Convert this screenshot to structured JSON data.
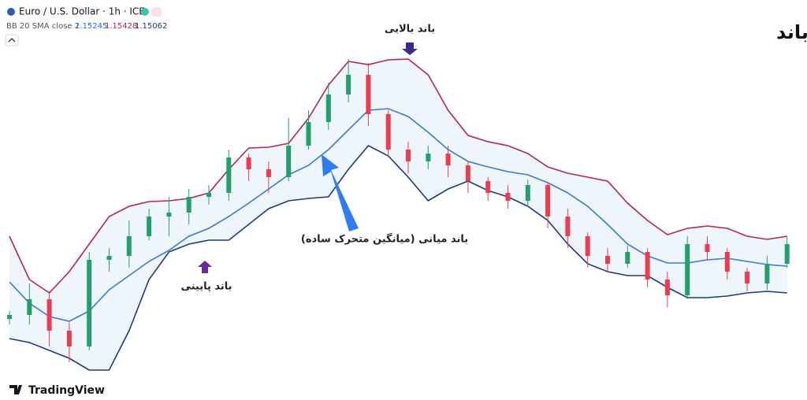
{
  "chart_data": {
    "type": "candlestick",
    "symbol": "Euro / U.S. Dollar · 1h · ICE",
    "indicator": {
      "label": "BB 20 SMA close 2",
      "basis": 1.15245,
      "upper": 1.15428,
      "lower": 1.15062
    },
    "title": "اندیکاتور بولینگر باند",
    "annotations": {
      "upper": "باند بالایی",
      "middle": "باند میانی (میانگین متحرک ساده)",
      "lower": "باند پایینی"
    },
    "brand": "TradingView",
    "ylim": [
      1.1442,
      1.1696
    ],
    "up_color": "#22a06b",
    "down_color": "#ef3b50",
    "candles": {
      "open": [
        1.14935,
        1.1496,
        1.1506,
        1.1486,
        1.1476,
        1.1531,
        1.15335,
        1.1546,
        1.15585,
        1.1561,
        1.1571,
        1.15735,
        1.1596,
        1.15885,
        1.15835,
        1.16035,
        1.16185,
        1.1636,
        1.16485,
        1.16235,
        1.1601,
        1.15935,
        1.15985,
        1.1591,
        1.1581,
        1.15735,
        1.15685,
        1.15785,
        1.15585,
        1.1546,
        1.15335,
        1.15285,
        1.1536,
        1.15185,
        1.15085,
        1.1541,
        1.1536,
        1.15235,
        1.1516,
        1.15285
      ],
      "high": [
        1.14985,
        1.1516,
        1.1511,
        1.1491,
        1.1536,
        1.15385,
        1.1556,
        1.15635,
        1.1571,
        1.1576,
        1.15785,
        1.1601,
        1.15985,
        1.15935,
        1.1621,
        1.1626,
        1.16435,
        1.16585,
        1.1656,
        1.1626,
        1.1606,
        1.16035,
        1.16035,
        1.15935,
        1.15835,
        1.15785,
        1.1582,
        1.158,
        1.15635,
        1.15485,
        1.15385,
        1.154,
        1.15385,
        1.15235,
        1.1546,
        1.1546,
        1.15385,
        1.1526,
        1.15335,
        1.1546
      ],
      "low": [
        1.149,
        1.149,
        1.1476,
        1.1466,
        1.14735,
        1.15235,
        1.1526,
        1.15435,
        1.1546,
        1.15535,
        1.1566,
        1.15685,
        1.1581,
        1.15735,
        1.1581,
        1.1601,
        1.16135,
        1.1631,
        1.1616,
        1.1596,
        1.1586,
        1.15885,
        1.15835,
        1.15735,
        1.15685,
        1.15635,
        1.1565,
        1.1551,
        1.15385,
        1.1526,
        1.15235,
        1.1526,
        1.15135,
        1.1501,
        1.1506,
        1.1531,
        1.15185,
        1.1511,
        1.1512,
        1.1526
      ],
      "close": [
        1.1496,
        1.1506,
        1.1486,
        1.1476,
        1.1531,
        1.15335,
        1.1546,
        1.15585,
        1.1561,
        1.1571,
        1.15735,
        1.1596,
        1.15885,
        1.15835,
        1.16035,
        1.16185,
        1.1636,
        1.16485,
        1.16235,
        1.1601,
        1.15935,
        1.15985,
        1.1591,
        1.1581,
        1.15735,
        1.15685,
        1.15785,
        1.15585,
        1.1546,
        1.15335,
        1.15285,
        1.1536,
        1.15185,
        1.15085,
        1.1541,
        1.1536,
        1.15235,
        1.1516,
        1.15285,
        1.1541
      ]
    },
    "bands": {
      "fill": "#eef6fb",
      "upper": {
        "color": "#b3245a",
        "values": [
          1.1546,
          1.15185,
          1.151,
          1.15235,
          1.1541,
          1.15585,
          1.1565,
          1.1568,
          1.15685,
          1.157,
          1.15735,
          1.15885,
          1.1602,
          1.16025,
          1.1605,
          1.1621,
          1.1642,
          1.1657,
          1.1655,
          1.1658,
          1.16585,
          1.16485,
          1.1626,
          1.161,
          1.1606,
          1.16035,
          1.15985,
          1.159,
          1.1586,
          1.15835,
          1.1581,
          1.1567,
          1.1556,
          1.1547,
          1.1551,
          1.15525,
          1.1551,
          1.1546,
          1.1544,
          1.1546
        ]
      },
      "middle": {
        "color": "#3b78d8",
        "values": [
          1.1517,
          1.15035,
          1.1495,
          1.1492,
          1.14985,
          1.1512,
          1.1521,
          1.153,
          1.1537,
          1.1546,
          1.1551,
          1.15585,
          1.1567,
          1.1576,
          1.1585,
          1.1591,
          1.1601,
          1.16135,
          1.1626,
          1.1627,
          1.1622,
          1.1612,
          1.1601,
          1.15935,
          1.159,
          1.1587,
          1.1585,
          1.158,
          1.15735,
          1.1565,
          1.15535,
          1.1541,
          1.15335,
          1.1529,
          1.1529,
          1.1531,
          1.1532,
          1.153,
          1.1528,
          1.1527
        ]
      },
      "lower": {
        "color": "#1f3a7a",
        "values": [
          1.1481,
          1.14785,
          1.14735,
          1.14685,
          1.1461,
          1.1461,
          1.1486,
          1.15185,
          1.1536,
          1.1541,
          1.15435,
          1.15435,
          1.15535,
          1.15635,
          1.15685,
          1.157,
          1.1571,
          1.15885,
          1.16035,
          1.1597,
          1.15835,
          1.15685,
          1.1576,
          1.1581,
          1.1575,
          1.1571,
          1.1565,
          1.1556,
          1.1541,
          1.15285,
          1.15235,
          1.1521,
          1.1521,
          1.15135,
          1.1507,
          1.1507,
          1.1508,
          1.151,
          1.1511,
          1.151
        ]
      }
    }
  }
}
